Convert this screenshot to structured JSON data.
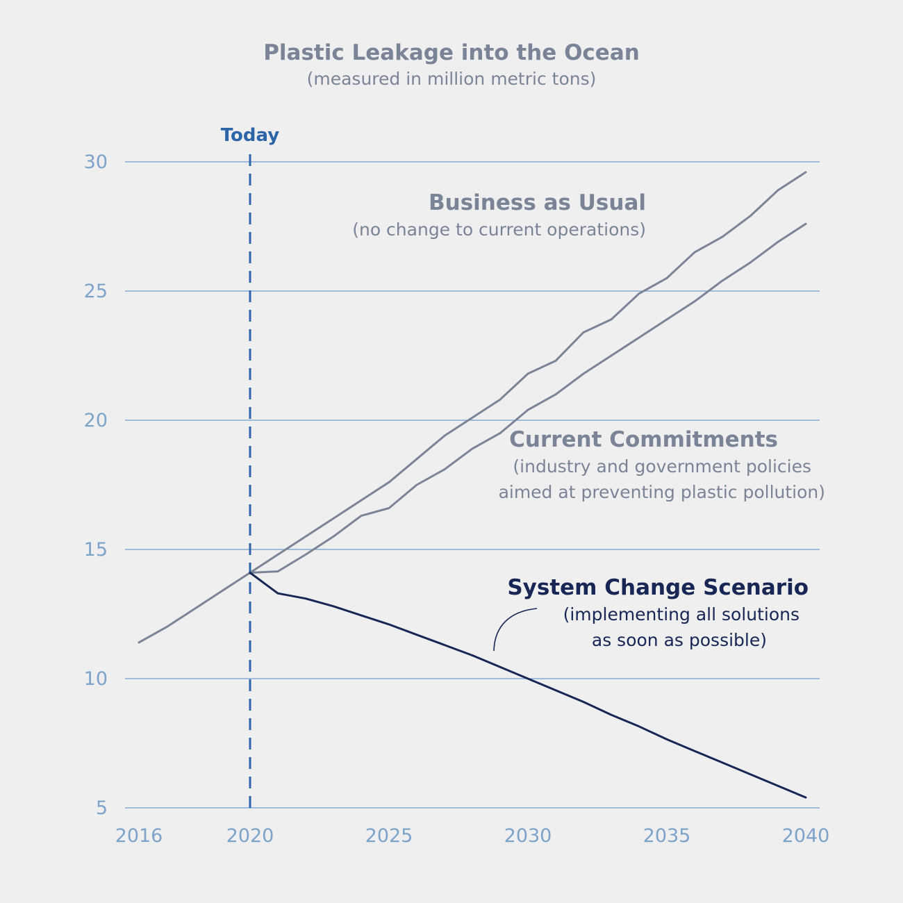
{
  "colors": {
    "background": "#efefef",
    "grid": "#6f9ccc",
    "tick_text": "#7da3c9",
    "today": "#2c64a8",
    "business_as_usual": "#7b8396",
    "current_commitments": "#7b8396",
    "system_change": "#172654"
  },
  "chart_data": {
    "type": "line",
    "title": "Plastic Leakage into the Ocean",
    "subtitle": "(measured in million metric tons)",
    "xlim": [
      2016,
      2040
    ],
    "ylim": [
      5,
      30
    ],
    "x_ticks": [
      "2016",
      "2020",
      "2025",
      "2030",
      "2035",
      "2040"
    ],
    "y_ticks": [
      "30",
      "25",
      "20",
      "15",
      "10",
      "5"
    ],
    "grid": "horizontal",
    "marker": {
      "label": "Today",
      "x": 2020
    },
    "series": [
      {
        "name": "Business as Usual",
        "note": "(no change to current operations)",
        "x": [
          2016,
          2017,
          2018,
          2019,
          2020,
          2021,
          2022,
          2023,
          2024,
          2025,
          2026,
          2027,
          2028,
          2029,
          2030,
          2031,
          2032,
          2033,
          2034,
          2035,
          2036,
          2037,
          2038,
          2039,
          2040
        ],
        "y": [
          11.4,
          12.0,
          12.7,
          13.4,
          14.1,
          14.8,
          15.5,
          16.2,
          16.9,
          17.6,
          18.5,
          19.4,
          20.1,
          20.8,
          21.8,
          22.3,
          23.4,
          23.9,
          24.9,
          25.5,
          26.5,
          27.1,
          27.9,
          28.9,
          29.6
        ]
      },
      {
        "name": "Current Commitments",
        "note_lines": [
          "(industry and government policies",
          "aimed at preventing plastic pollution)"
        ],
        "x": [
          2020,
          2021,
          2022,
          2023,
          2024,
          2025,
          2026,
          2027,
          2028,
          2029,
          2030,
          2031,
          2032,
          2033,
          2034,
          2035,
          2036,
          2037,
          2038,
          2039,
          2040
        ],
        "y": [
          14.1,
          14.15,
          14.8,
          15.5,
          16.3,
          16.6,
          17.5,
          18.1,
          18.9,
          19.5,
          20.4,
          21.0,
          21.8,
          22.5,
          23.2,
          23.9,
          24.6,
          25.4,
          26.1,
          26.9,
          27.6
        ]
      },
      {
        "name": "System Change Scenario",
        "note_lines": [
          "(implementing all solutions",
          "as soon as possible)"
        ],
        "x": [
          2020,
          2021,
          2022,
          2023,
          2024,
          2025,
          2026,
          2027,
          2028,
          2029,
          2030,
          2031,
          2032,
          2033,
          2034,
          2035,
          2036,
          2037,
          2038,
          2039,
          2040
        ],
        "y": [
          14.1,
          13.3,
          13.1,
          12.8,
          12.45,
          12.1,
          11.7,
          11.3,
          10.9,
          10.45,
          10.0,
          9.55,
          9.1,
          8.6,
          8.15,
          7.65,
          7.2,
          6.75,
          6.3,
          5.85,
          5.4
        ]
      }
    ]
  }
}
